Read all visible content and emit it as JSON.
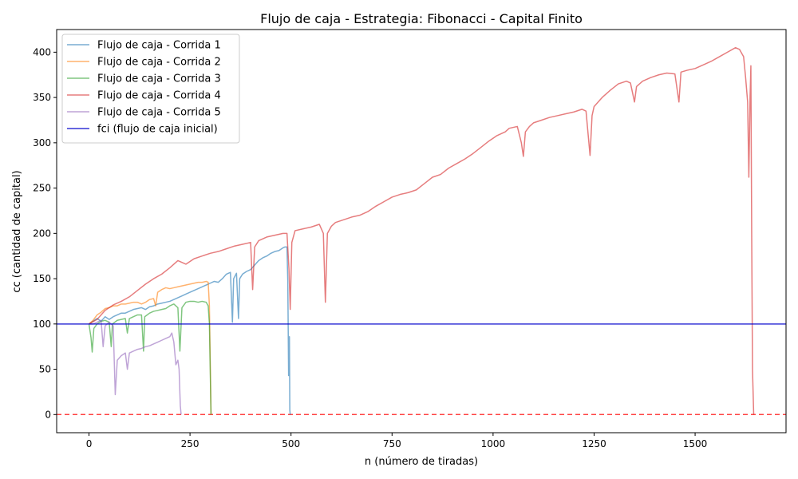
{
  "chart_data": {
    "type": "line",
    "title": "Flujo de caja - Estrategia: Fibonacci - Capital Finito",
    "xlabel": "n (número de tiradas)",
    "ylabel": "cc (cantidad de capital)",
    "xlim": [
      -80,
      1725
    ],
    "ylim": [
      -20,
      425
    ],
    "xticks": [
      0,
      250,
      500,
      750,
      1000,
      1250,
      1500
    ],
    "yticks": [
      0,
      50,
      100,
      150,
      200,
      250,
      300,
      350,
      400
    ],
    "grid": false,
    "legend_position": "top-left",
    "series": [
      {
        "name": "Flujo de caja - Corrida 1",
        "color": "#1f77b4",
        "opacity": 0.6,
        "points": [
          [
            0,
            100
          ],
          [
            10,
            103
          ],
          [
            20,
            106
          ],
          [
            30,
            103
          ],
          [
            40,
            108
          ],
          [
            50,
            105
          ],
          [
            60,
            108
          ],
          [
            70,
            110
          ],
          [
            80,
            112
          ],
          [
            90,
            112
          ],
          [
            100,
            114
          ],
          [
            110,
            116
          ],
          [
            120,
            117
          ],
          [
            130,
            118
          ],
          [
            140,
            116
          ],
          [
            150,
            119
          ],
          [
            160,
            120
          ],
          [
            170,
            122
          ],
          [
            180,
            123
          ],
          [
            190,
            124
          ],
          [
            200,
            125
          ],
          [
            210,
            127
          ],
          [
            220,
            129
          ],
          [
            230,
            131
          ],
          [
            240,
            133
          ],
          [
            250,
            135
          ],
          [
            260,
            137
          ],
          [
            270,
            139
          ],
          [
            280,
            141
          ],
          [
            290,
            143
          ],
          [
            300,
            145
          ],
          [
            310,
            147
          ],
          [
            320,
            146
          ],
          [
            330,
            150
          ],
          [
            340,
            155
          ],
          [
            350,
            157
          ],
          [
            355,
            102
          ],
          [
            358,
            150
          ],
          [
            365,
            156
          ],
          [
            370,
            106
          ],
          [
            373,
            150
          ],
          [
            380,
            155
          ],
          [
            390,
            158
          ],
          [
            400,
            160
          ],
          [
            410,
            165
          ],
          [
            420,
            170
          ],
          [
            430,
            173
          ],
          [
            440,
            175
          ],
          [
            450,
            178
          ],
          [
            460,
            180
          ],
          [
            470,
            181
          ],
          [
            480,
            184
          ],
          [
            485,
            185
          ],
          [
            490,
            185
          ],
          [
            492,
            148
          ],
          [
            494,
            43
          ],
          [
            496,
            86
          ],
          [
            497,
            5
          ],
          [
            498,
            0
          ]
        ]
      },
      {
        "name": "Flujo de caja - Corrida 2",
        "color": "#ff7f0e",
        "opacity": 0.6,
        "points": [
          [
            0,
            100
          ],
          [
            10,
            104
          ],
          [
            20,
            110
          ],
          [
            30,
            113
          ],
          [
            40,
            117
          ],
          [
            50,
            118
          ],
          [
            60,
            120
          ],
          [
            70,
            120
          ],
          [
            80,
            122
          ],
          [
            90,
            122
          ],
          [
            100,
            123
          ],
          [
            110,
            124
          ],
          [
            120,
            124
          ],
          [
            130,
            122
          ],
          [
            140,
            124
          ],
          [
            150,
            127
          ],
          [
            160,
            128
          ],
          [
            165,
            120
          ],
          [
            170,
            135
          ],
          [
            180,
            138
          ],
          [
            190,
            140
          ],
          [
            200,
            139
          ],
          [
            210,
            140
          ],
          [
            220,
            141
          ],
          [
            230,
            142
          ],
          [
            240,
            143
          ],
          [
            250,
            144
          ],
          [
            260,
            145
          ],
          [
            270,
            146
          ],
          [
            280,
            146
          ],
          [
            290,
            147
          ],
          [
            295,
            146
          ],
          [
            298,
            120
          ],
          [
            300,
            60
          ],
          [
            302,
            0
          ]
        ]
      },
      {
        "name": "Flujo de caja - Corrida 3",
        "color": "#2ca02c",
        "opacity": 0.6,
        "points": [
          [
            0,
            100
          ],
          [
            5,
            85
          ],
          [
            8,
            69
          ],
          [
            12,
            95
          ],
          [
            20,
            100
          ],
          [
            30,
            103
          ],
          [
            40,
            104
          ],
          [
            50,
            102
          ],
          [
            55,
            75
          ],
          [
            58,
            100
          ],
          [
            70,
            104
          ],
          [
            80,
            105
          ],
          [
            90,
            106
          ],
          [
            95,
            90
          ],
          [
            100,
            106
          ],
          [
            110,
            108
          ],
          [
            120,
            110
          ],
          [
            130,
            110
          ],
          [
            135,
            70
          ],
          [
            138,
            108
          ],
          [
            150,
            112
          ],
          [
            160,
            114
          ],
          [
            170,
            115
          ],
          [
            180,
            116
          ],
          [
            190,
            117
          ],
          [
            200,
            120
          ],
          [
            210,
            122
          ],
          [
            220,
            118
          ],
          [
            225,
            70
          ],
          [
            230,
            118
          ],
          [
            240,
            124
          ],
          [
            250,
            125
          ],
          [
            260,
            125
          ],
          [
            270,
            124
          ],
          [
            280,
            125
          ],
          [
            290,
            124
          ],
          [
            295,
            120
          ],
          [
            298,
            100
          ],
          [
            300,
            50
          ],
          [
            302,
            0
          ]
        ]
      },
      {
        "name": "Flujo de caja - Corrida 4",
        "color": "#d62728",
        "opacity": 0.6,
        "points": [
          [
            0,
            100
          ],
          [
            20,
            105
          ],
          [
            40,
            115
          ],
          [
            60,
            121
          ],
          [
            80,
            125
          ],
          [
            100,
            130
          ],
          [
            120,
            137
          ],
          [
            140,
            144
          ],
          [
            160,
            150
          ],
          [
            180,
            155
          ],
          [
            200,
            162
          ],
          [
            220,
            170
          ],
          [
            240,
            166
          ],
          [
            260,
            172
          ],
          [
            280,
            175
          ],
          [
            300,
            178
          ],
          [
            320,
            180
          ],
          [
            340,
            183
          ],
          [
            360,
            186
          ],
          [
            380,
            188
          ],
          [
            400,
            190
          ],
          [
            405,
            138
          ],
          [
            410,
            185
          ],
          [
            420,
            192
          ],
          [
            440,
            196
          ],
          [
            460,
            198
          ],
          [
            480,
            200
          ],
          [
            490,
            200
          ],
          [
            495,
            160
          ],
          [
            498,
            116
          ],
          [
            502,
            190
          ],
          [
            510,
            203
          ],
          [
            530,
            205
          ],
          [
            550,
            207
          ],
          [
            570,
            210
          ],
          [
            580,
            200
          ],
          [
            585,
            124
          ],
          [
            590,
            200
          ],
          [
            600,
            208
          ],
          [
            610,
            212
          ],
          [
            630,
            215
          ],
          [
            650,
            218
          ],
          [
            670,
            220
          ],
          [
            690,
            224
          ],
          [
            710,
            230
          ],
          [
            730,
            235
          ],
          [
            750,
            240
          ],
          [
            770,
            243
          ],
          [
            790,
            245
          ],
          [
            810,
            248
          ],
          [
            830,
            255
          ],
          [
            850,
            262
          ],
          [
            870,
            265
          ],
          [
            890,
            272
          ],
          [
            910,
            277
          ],
          [
            930,
            282
          ],
          [
            950,
            288
          ],
          [
            970,
            295
          ],
          [
            990,
            302
          ],
          [
            1010,
            308
          ],
          [
            1030,
            312
          ],
          [
            1040,
            316
          ],
          [
            1060,
            318
          ],
          [
            1070,
            300
          ],
          [
            1075,
            285
          ],
          [
            1080,
            312
          ],
          [
            1090,
            318
          ],
          [
            1100,
            322
          ],
          [
            1120,
            325
          ],
          [
            1140,
            328
          ],
          [
            1160,
            330
          ],
          [
            1180,
            332
          ],
          [
            1200,
            334
          ],
          [
            1220,
            337
          ],
          [
            1230,
            335
          ],
          [
            1240,
            286
          ],
          [
            1245,
            330
          ],
          [
            1250,
            340
          ],
          [
            1270,
            350
          ],
          [
            1290,
            358
          ],
          [
            1310,
            365
          ],
          [
            1330,
            368
          ],
          [
            1340,
            366
          ],
          [
            1350,
            345
          ],
          [
            1355,
            362
          ],
          [
            1370,
            368
          ],
          [
            1390,
            372
          ],
          [
            1410,
            375
          ],
          [
            1430,
            377
          ],
          [
            1450,
            376
          ],
          [
            1460,
            345
          ],
          [
            1465,
            378
          ],
          [
            1480,
            380
          ],
          [
            1500,
            382
          ],
          [
            1520,
            386
          ],
          [
            1540,
            390
          ],
          [
            1560,
            395
          ],
          [
            1580,
            400
          ],
          [
            1600,
            405
          ],
          [
            1610,
            403
          ],
          [
            1620,
            395
          ],
          [
            1625,
            372
          ],
          [
            1630,
            345
          ],
          [
            1633,
            262
          ],
          [
            1636,
            350
          ],
          [
            1638,
            385
          ],
          [
            1640,
            200
          ],
          [
            1642,
            50
          ],
          [
            1645,
            0
          ]
        ]
      },
      {
        "name": "Flujo de caja - Corrida 5",
        "color": "#9467bd",
        "opacity": 0.6,
        "points": [
          [
            0,
            100
          ],
          [
            10,
            100
          ],
          [
            20,
            102
          ],
          [
            30,
            104
          ],
          [
            35,
            75
          ],
          [
            40,
            98
          ],
          [
            50,
            102
          ],
          [
            60,
            98
          ],
          [
            65,
            22
          ],
          [
            70,
            60
          ],
          [
            80,
            65
          ],
          [
            90,
            68
          ],
          [
            95,
            50
          ],
          [
            100,
            68
          ],
          [
            110,
            70
          ],
          [
            120,
            72
          ],
          [
            130,
            73
          ],
          [
            140,
            75
          ],
          [
            150,
            76
          ],
          [
            160,
            78
          ],
          [
            170,
            80
          ],
          [
            180,
            82
          ],
          [
            190,
            84
          ],
          [
            200,
            86
          ],
          [
            205,
            90
          ],
          [
            210,
            80
          ],
          [
            215,
            55
          ],
          [
            220,
            60
          ],
          [
            223,
            50
          ],
          [
            226,
            10
          ],
          [
            228,
            0
          ]
        ]
      },
      {
        "name": "fci (flujo de caja inicial)",
        "color": "#0000cc",
        "opacity": 0.8,
        "points": [
          [
            -80,
            100
          ],
          [
            1725,
            100
          ]
        ]
      }
    ],
    "reference_lines": [
      {
        "y": 0,
        "style": "dashed",
        "color": "#ff4040"
      }
    ]
  }
}
